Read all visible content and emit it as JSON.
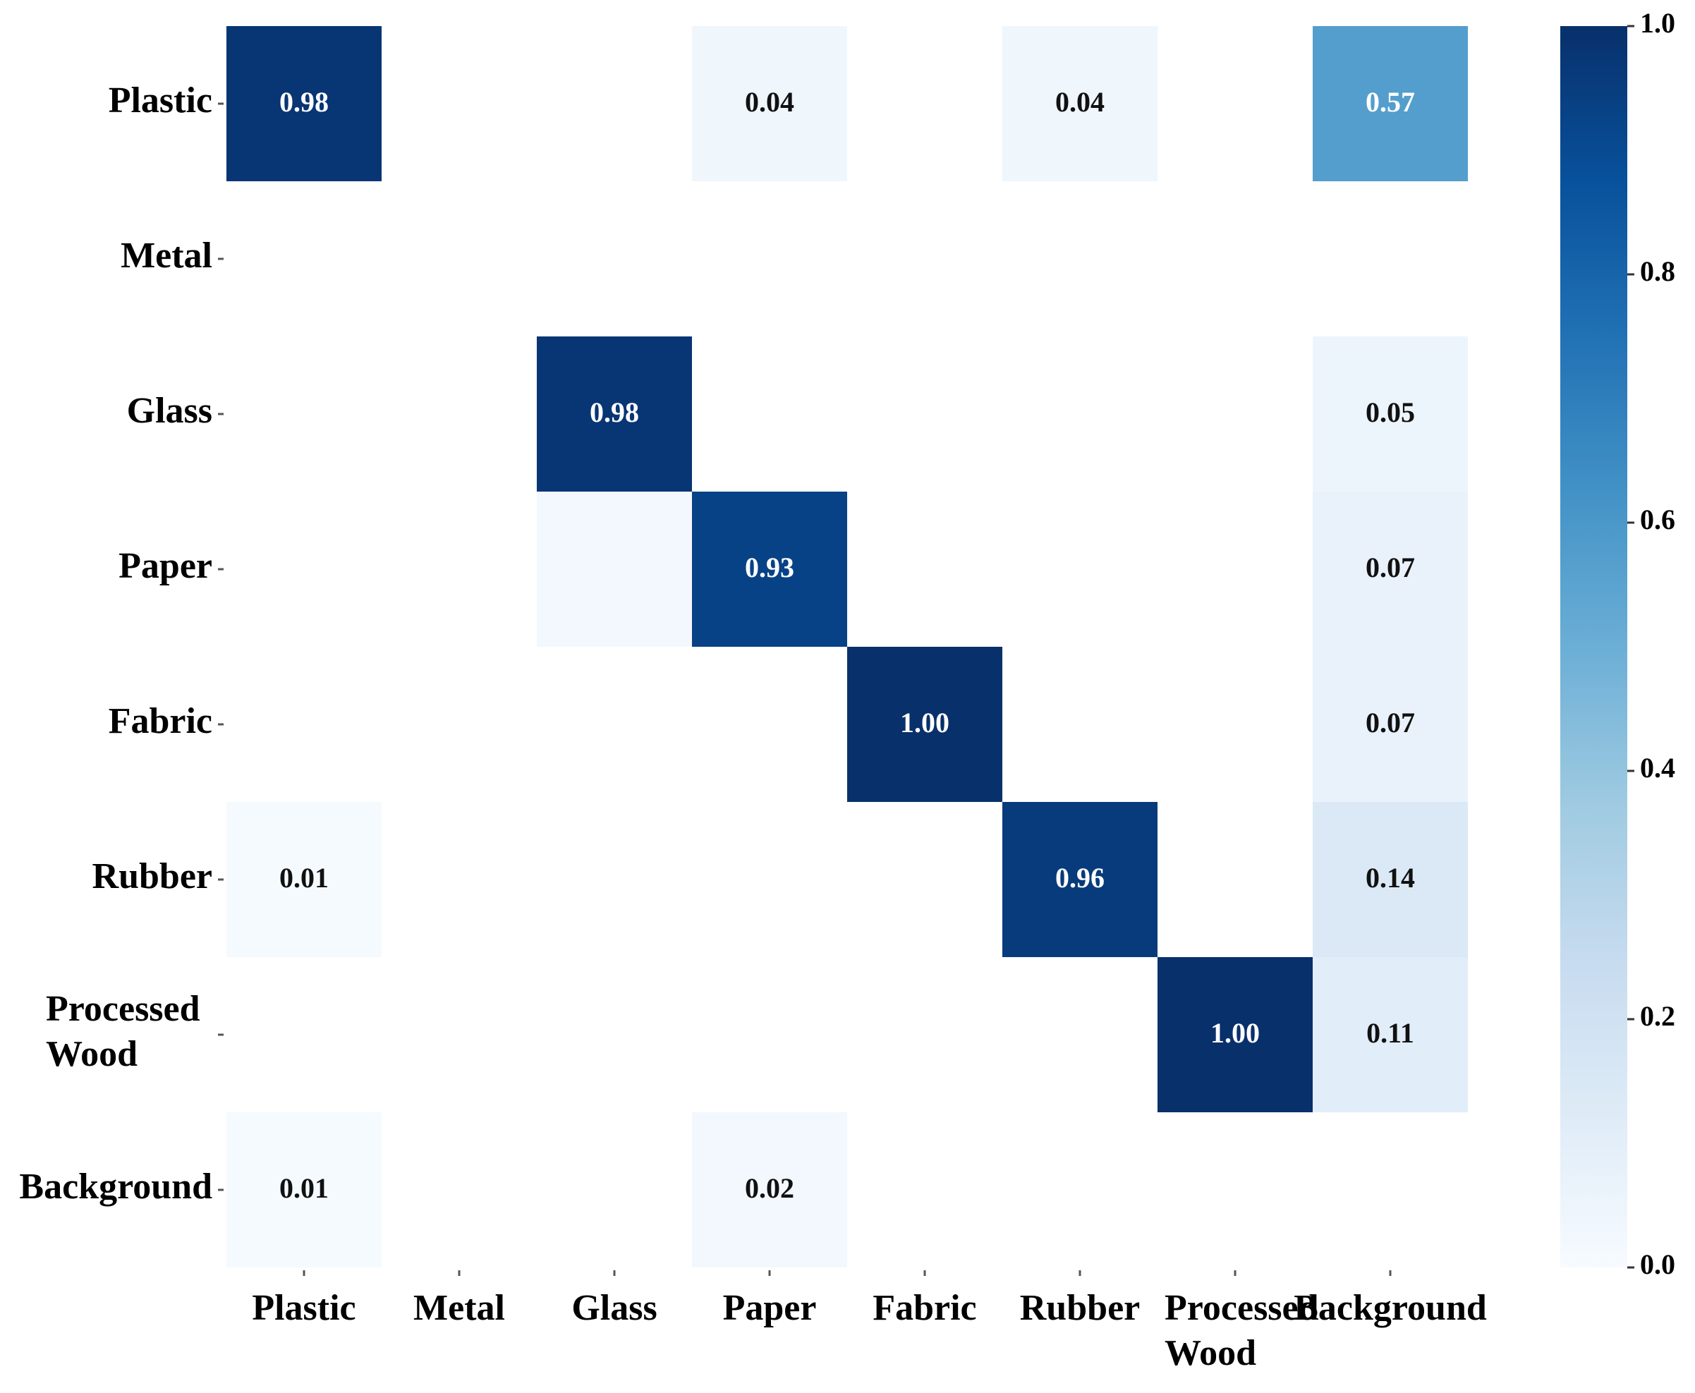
{
  "chart_data": {
    "type": "heatmap",
    "title": "",
    "xlabel": "",
    "ylabel": "",
    "rows": [
      "Plastic",
      "Metal",
      "Glass",
      "Paper",
      "Fabric",
      "Rubber",
      "Processed Wood",
      "Background"
    ],
    "columns": [
      "Plastic",
      "Metal",
      "Glass",
      "Paper",
      "Fabric",
      "Rubber",
      "Processed Wood",
      "Background"
    ],
    "values": [
      [
        0.98,
        null,
        null,
        0.04,
        null,
        0.04,
        null,
        0.57
      ],
      [
        null,
        null,
        null,
        null,
        null,
        null,
        null,
        null
      ],
      [
        null,
        null,
        0.98,
        null,
        null,
        null,
        null,
        0.05
      ],
      [
        null,
        null,
        0.02,
        0.93,
        null,
        null,
        null,
        0.07
      ],
      [
        null,
        null,
        null,
        null,
        1.0,
        null,
        null,
        0.07
      ],
      [
        0.01,
        null,
        null,
        null,
        null,
        0.96,
        null,
        0.14
      ],
      [
        null,
        null,
        null,
        null,
        null,
        null,
        1.0,
        0.11
      ],
      [
        0.01,
        null,
        null,
        0.02,
        null,
        null,
        null,
        null
      ]
    ],
    "value_labels": [
      [
        "0.98",
        "",
        "",
        "0.04",
        "",
        "0.04",
        "",
        "0.57"
      ],
      [
        "",
        "",
        "",
        "",
        "",
        "",
        "",
        ""
      ],
      [
        "",
        "",
        "0.98",
        "",
        "",
        "",
        "",
        "0.05"
      ],
      [
        "",
        "",
        "",
        "0.93",
        "",
        "",
        "",
        "0.07"
      ],
      [
        "",
        "",
        "",
        "",
        "1.00",
        "",
        "",
        "0.07"
      ],
      [
        "0.01",
        "",
        "",
        "",
        "",
        "0.96",
        "",
        "0.14"
      ],
      [
        "",
        "",
        "",
        "",
        "",
        "",
        "1.00",
        "0.11"
      ],
      [
        "0.01",
        "",
        "",
        "0.02",
        "",
        "",
        "",
        ""
      ]
    ],
    "colorbar": {
      "range": [
        0.0,
        1.0
      ],
      "ticks": [
        "0.0",
        "0.2",
        "0.4",
        "0.6",
        "0.8",
        "1.0"
      ],
      "colormap": "Blues",
      "low_color": "#f7fbff",
      "high_color": "#08306b"
    },
    "grid": false,
    "legend": "colorbar right"
  }
}
